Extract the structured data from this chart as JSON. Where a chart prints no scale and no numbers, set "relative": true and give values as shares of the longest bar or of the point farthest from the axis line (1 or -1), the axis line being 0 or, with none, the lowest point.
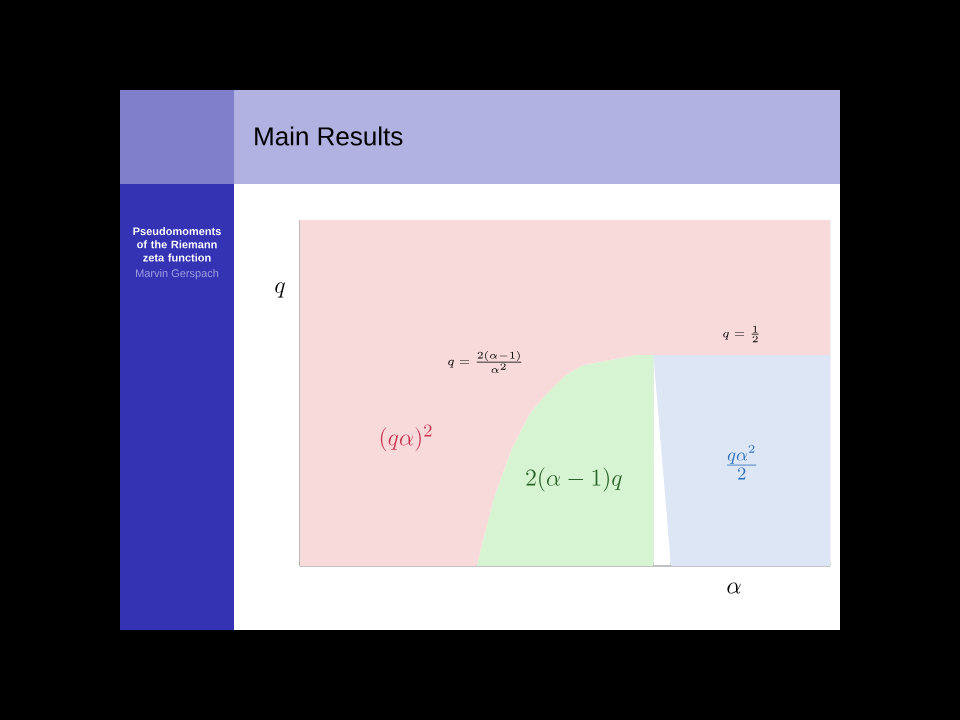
{
  "chart_data": {
    "type": "area",
    "title": "Main Results",
    "xlabel": "\\alpha",
    "ylabel": "q",
    "relative": true,
    "grid": "x",
    "categories": [
      null,
      null,
      null,
      null,
      null,
      null,
      null,
      null,
      null,
      null,
      null,
      null,
      null,
      null,
      null,
      null,
      null,
      null,
      null,
      null,
      null,
      null,
      null,
      null,
      null,
      null,
      null,
      null,
      null,
      null,
      null
    ],
    "series": [
      {
        "color": "#d6f4d2",
        "values": [
          null,
          null,
          null,
          null,
          null,
          null,
          null,
          null,
          null,
          null,
          0,
          0.2,
          0.34,
          0.44,
          0.5,
          0.55,
          0.58,
          0.59,
          0.6,
          0.61,
          0.61,
          null,
          null,
          null,
          null,
          null,
          null,
          null,
          null,
          null,
          null
        ]
      },
      {
        "color": "#dce6f4",
        "values": [
          null,
          null,
          null,
          null,
          null,
          null,
          null,
          null,
          null,
          null,
          null,
          null,
          null,
          null,
          null,
          null,
          null,
          null,
          null,
          null,
          0,
          0.61,
          0.61,
          0.61,
          0.61,
          0.61,
          0.61,
          0.61,
          0.61,
          0.61,
          0.61
        ]
      },
      {
        "color": "#f9dada",
        "values": [
          1,
          1,
          1,
          1,
          1,
          1,
          1,
          1,
          1,
          1,
          1,
          0.8,
          0.66,
          0.56,
          0.5,
          0.45,
          0.42,
          0.41,
          0.4,
          0.39,
          0.39,
          0.39,
          0.39,
          0.39,
          0.39,
          0.39,
          0.39,
          0.39,
          0.39,
          0.39,
          0.39
        ]
      }
    ],
    "stacked": true,
    "annotations": [
      "Pseudomoments of the Riemann zeta function",
      "Marvin Gerspach",
      "(q\\alpha)^2",
      "2(\\alpha-1)q",
      "\\frac{q\\alpha^2}{2}",
      "q=\\frac{2(\\alpha-1)}{\\alpha^2}",
      "q=\\frac{1}{2}"
    ]
  }
}
